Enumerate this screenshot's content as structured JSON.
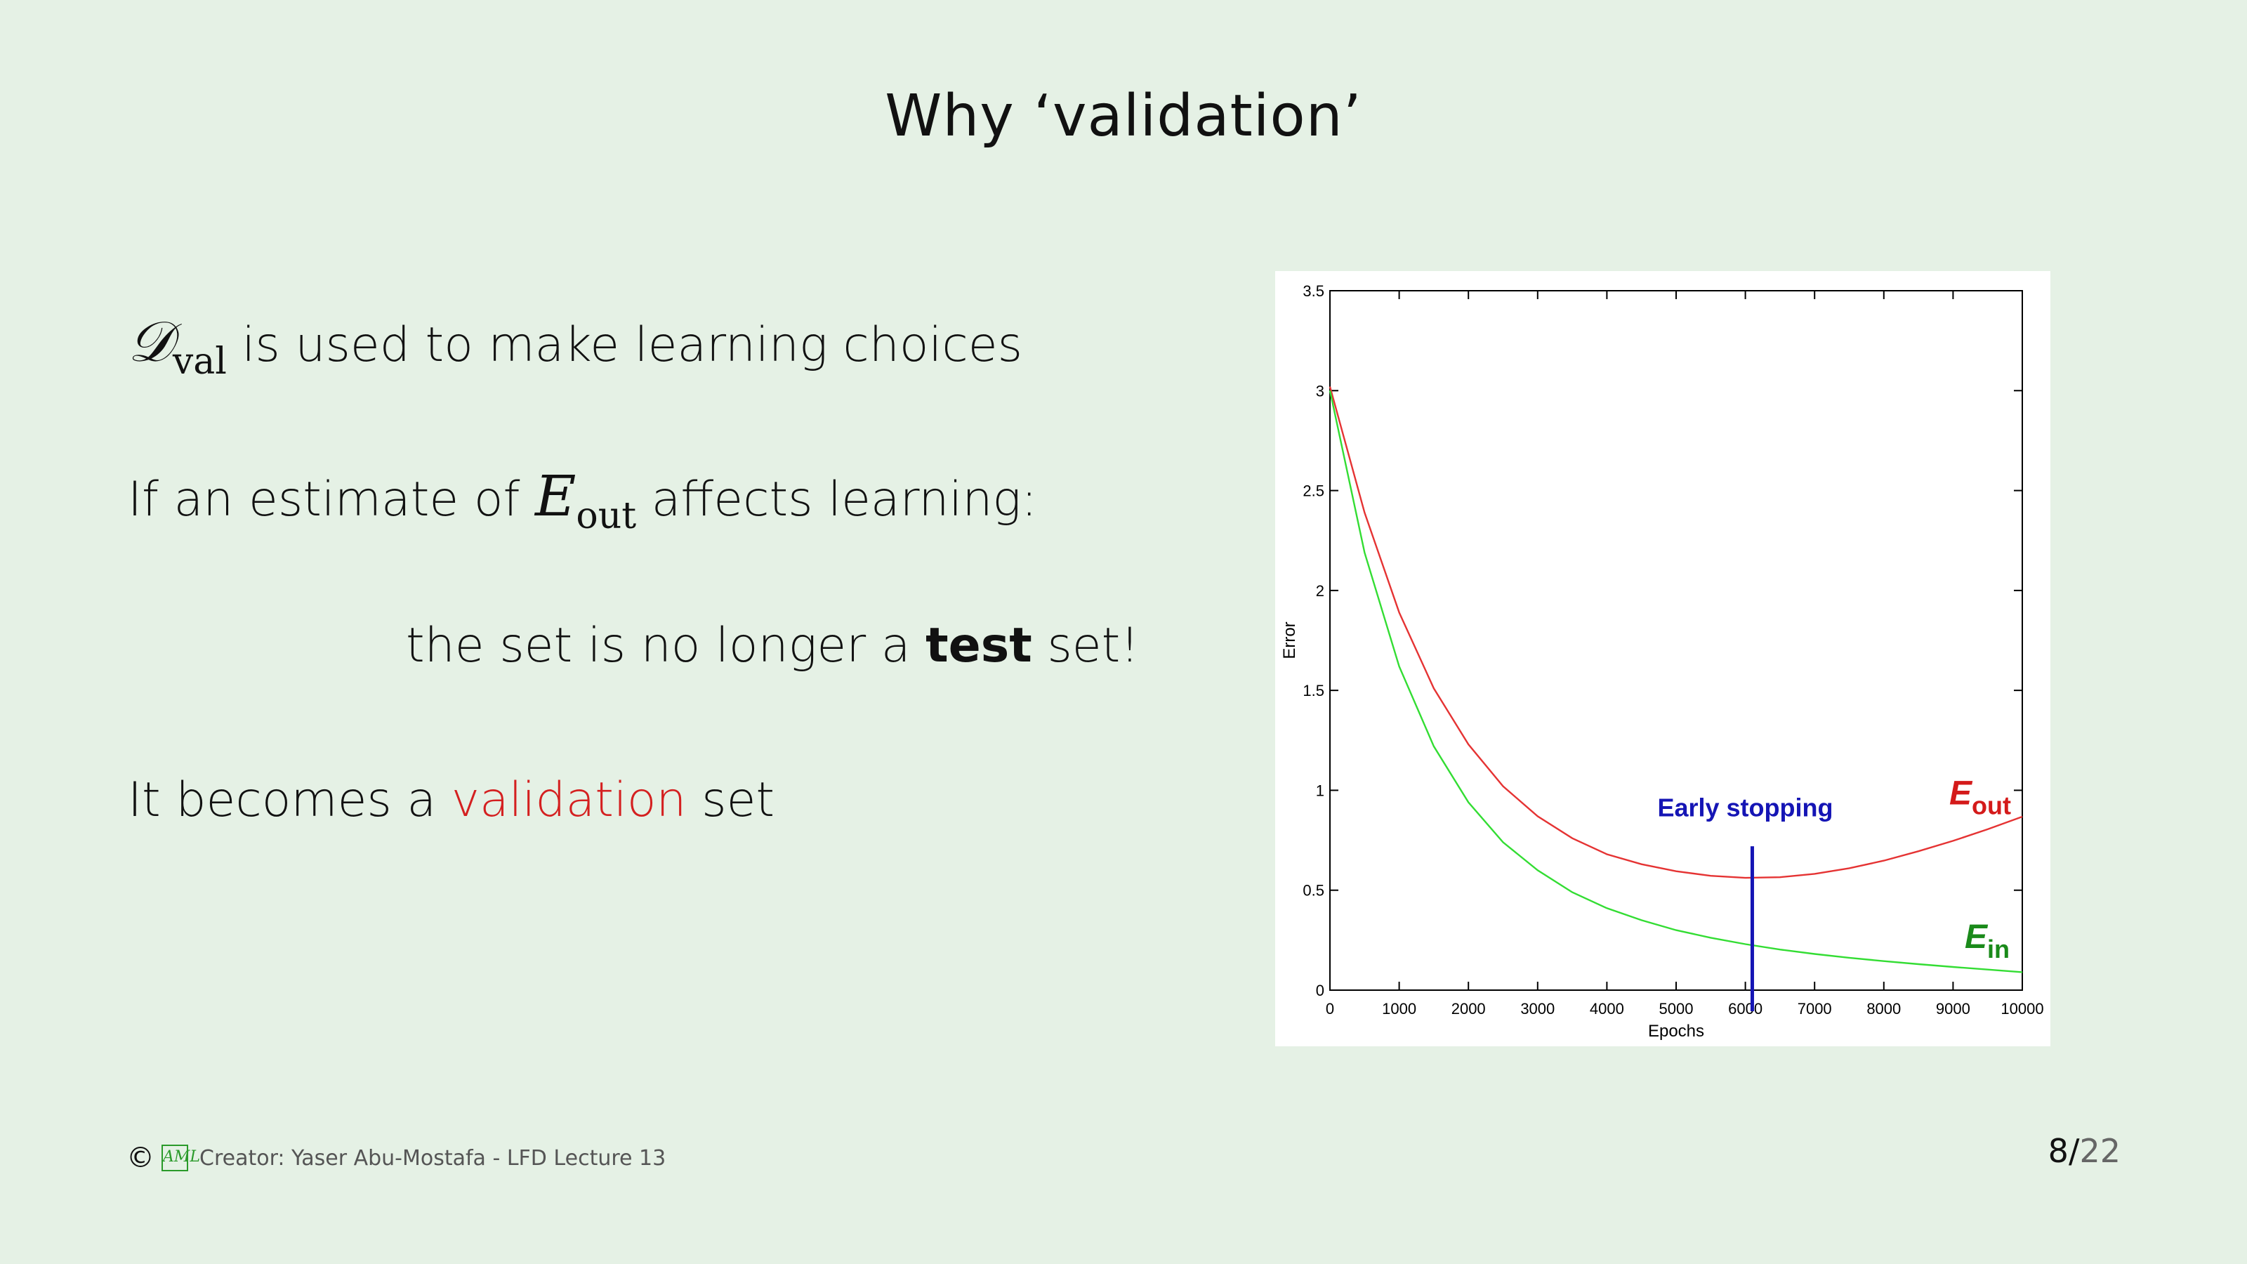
{
  "slide": {
    "title": "Why ‘validation’",
    "bullets": {
      "b1": {
        "sym": "𝒟",
        "sub": "val",
        "text": " is used to make learning choices"
      },
      "b2": {
        "pre": "If an estimate of ",
        "sym": "E",
        "sub": "out",
        "post": " affects learning:"
      },
      "b3": {
        "pre": "the set is no longer a ",
        "bold": "test",
        "post": " set!"
      },
      "b4": {
        "pre": "It becomes a ",
        "highlight": "validation",
        "post": " set"
      }
    },
    "highlight_color": "#d42020"
  },
  "footer": {
    "copyright": "©",
    "logo": "AML",
    "credit": "Creator: Yaser Abu-Mostafa - LFD Lecture 13",
    "page_current": "8",
    "page_total": "22"
  },
  "chart_data": {
    "type": "line",
    "title": "",
    "xlabel": "Epochs",
    "ylabel": "Error",
    "xlim": [
      0,
      10000
    ],
    "ylim": [
      0,
      3.5
    ],
    "xticks": [
      0,
      1000,
      2000,
      3000,
      4000,
      5000,
      6000,
      7000,
      8000,
      9000,
      10000
    ],
    "yticks": [
      0,
      0.5,
      1,
      1.5,
      2,
      2.5,
      3,
      3.5
    ],
    "ytick_labels": [
      "0",
      "0.5",
      "1",
      "1.5",
      "2",
      "2.5",
      "3",
      "3.5"
    ],
    "grid": false,
    "x": [
      0,
      500,
      1000,
      1500,
      2000,
      2500,
      3000,
      3500,
      4000,
      4500,
      5000,
      5500,
      6000,
      6500,
      7000,
      7500,
      8000,
      8500,
      9000,
      9500,
      10000
    ],
    "series": [
      {
        "name": "E_out",
        "label_main": "E",
        "label_sub": "out",
        "color": "#e53333",
        "label_color": "#d41a1a",
        "values": [
          3.02,
          2.39,
          1.89,
          1.51,
          1.23,
          1.02,
          0.87,
          0.76,
          0.68,
          0.63,
          0.595,
          0.572,
          0.562,
          0.565,
          0.582,
          0.61,
          0.648,
          0.695,
          0.747,
          0.805,
          0.868
        ]
      },
      {
        "name": "E_in",
        "label_main": "E",
        "label_sub": "in",
        "color": "#33dd33",
        "label_color": "#1a8a1a",
        "values": [
          3.0,
          2.19,
          1.62,
          1.22,
          0.94,
          0.74,
          0.6,
          0.49,
          0.41,
          0.35,
          0.3,
          0.262,
          0.23,
          0.203,
          0.181,
          0.162,
          0.145,
          0.13,
          0.116,
          0.103,
          0.09
        ]
      }
    ],
    "annotation": {
      "label": "Early stopping",
      "x": 6100,
      "y_top": 0.72,
      "color": "#1515b5"
    }
  }
}
